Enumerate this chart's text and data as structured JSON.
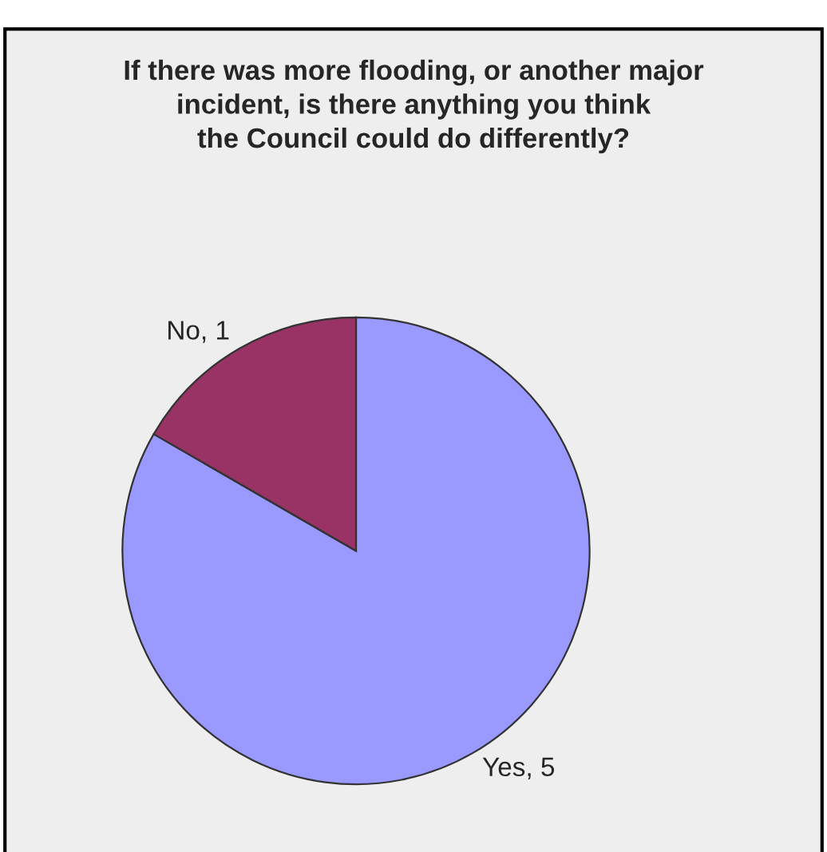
{
  "chart_data": {
    "type": "pie",
    "title": "If there was more flooding, or another major\nincident, is there anything you think\nthe Council could do differently?",
    "categories": [
      "Yes, 5",
      "No, 1"
    ],
    "values": [
      5,
      1
    ],
    "colors": [
      "#9999ff",
      "#993366"
    ]
  }
}
